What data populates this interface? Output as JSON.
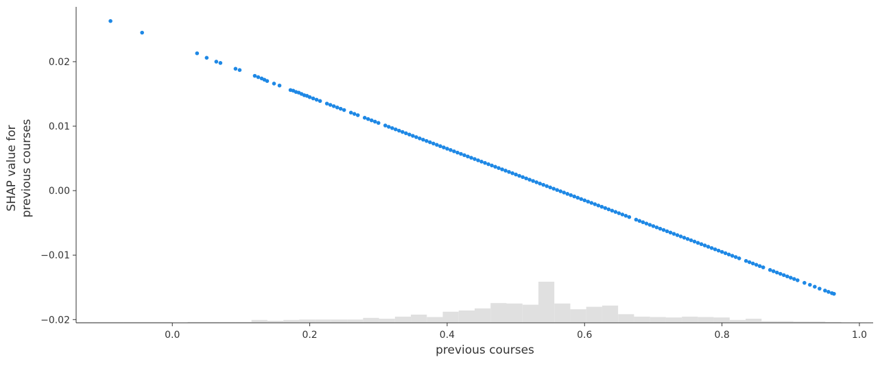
{
  "chart_data": {
    "type": "scatter",
    "xlabel": "previous courses",
    "ylabel_lines": [
      "SHAP value for",
      "previous courses"
    ],
    "xlim": [
      -0.14,
      1.02
    ],
    "ylim": [
      -0.0205,
      0.0285
    ],
    "x_ticks": [
      0.0,
      0.2,
      0.4,
      0.6,
      0.8,
      1.0
    ],
    "x_tick_labels": [
      "0.0",
      "0.2",
      "0.4",
      "0.6",
      "0.8",
      "1.0"
    ],
    "y_ticks": [
      -0.02,
      -0.01,
      0.0,
      0.01,
      0.02
    ],
    "y_tick_labels": [
      "−0.02",
      "−0.01",
      "0.00",
      "0.01",
      "0.02"
    ],
    "grid": false,
    "point_color": "#1e88e5",
    "histogram_color": "#e0e0e0",
    "relationship": {
      "slope": -0.04,
      "intercept": 0.0221
    },
    "points": {
      "x": [
        -0.09,
        -0.044,
        0.036,
        0.05,
        0.064,
        0.07,
        0.092,
        0.098,
        0.12,
        0.125,
        0.13,
        0.134,
        0.138,
        0.148,
        0.156,
        0.172,
        0.176,
        0.18,
        0.184,
        0.188,
        0.192,
        0.196,
        0.2,
        0.205,
        0.21,
        0.215,
        0.225,
        0.23,
        0.235,
        0.24,
        0.245,
        0.25,
        0.26,
        0.265,
        0.27,
        0.28,
        0.285,
        0.29,
        0.295,
        0.3,
        0.31,
        0.315,
        0.32,
        0.325,
        0.33,
        0.335,
        0.34,
        0.345,
        0.35,
        0.355,
        0.36,
        0.365,
        0.37,
        0.375,
        0.38,
        0.385,
        0.39,
        0.395,
        0.4,
        0.405,
        0.41,
        0.415,
        0.42,
        0.425,
        0.43,
        0.435,
        0.44,
        0.445,
        0.45,
        0.455,
        0.46,
        0.465,
        0.47,
        0.475,
        0.48,
        0.485,
        0.49,
        0.495,
        0.5,
        0.505,
        0.51,
        0.515,
        0.52,
        0.525,
        0.53,
        0.535,
        0.54,
        0.545,
        0.55,
        0.555,
        0.56,
        0.565,
        0.57,
        0.575,
        0.58,
        0.585,
        0.59,
        0.595,
        0.6,
        0.605,
        0.61,
        0.615,
        0.62,
        0.625,
        0.63,
        0.635,
        0.64,
        0.645,
        0.65,
        0.655,
        0.66,
        0.665,
        0.675,
        0.68,
        0.685,
        0.69,
        0.695,
        0.7,
        0.705,
        0.71,
        0.715,
        0.72,
        0.725,
        0.73,
        0.735,
        0.74,
        0.745,
        0.75,
        0.755,
        0.76,
        0.765,
        0.77,
        0.775,
        0.78,
        0.785,
        0.79,
        0.795,
        0.8,
        0.805,
        0.81,
        0.815,
        0.82,
        0.825,
        0.835,
        0.84,
        0.845,
        0.85,
        0.855,
        0.86,
        0.87,
        0.875,
        0.88,
        0.885,
        0.89,
        0.895,
        0.9,
        0.905,
        0.91,
        0.92,
        0.928,
        0.935,
        0.942,
        0.95,
        0.955,
        0.96,
        0.963
      ],
      "y": [
        0.0263,
        0.0245,
        0.0213,
        0.0206,
        0.02,
        0.0198,
        0.0189,
        0.0187,
        0.0178,
        0.0176,
        0.0174,
        0.0172,
        0.017,
        0.0166,
        0.0163,
        0.0156,
        0.0155,
        0.0153,
        0.0152,
        0.015,
        0.0148,
        0.0147,
        0.0145,
        0.0143,
        0.0141,
        0.0139,
        0.0135,
        0.0133,
        0.0131,
        0.0129,
        0.0127,
        0.0125,
        0.0121,
        0.0119,
        0.0117,
        0.0113,
        0.0111,
        0.0109,
        0.0107,
        0.0105,
        0.0101,
        0.0099,
        0.0097,
        0.0095,
        0.0093,
        0.0091,
        0.0089,
        0.0087,
        0.0085,
        0.0083,
        0.0081,
        0.0079,
        0.0077,
        0.0075,
        0.0073,
        0.0071,
        0.0069,
        0.0067,
        0.0065,
        0.0063,
        0.0061,
        0.0059,
        0.0057,
        0.0055,
        0.0053,
        0.0051,
        0.0049,
        0.0047,
        0.0045,
        0.0043,
        0.0041,
        0.0039,
        0.0037,
        0.0035,
        0.0033,
        0.0031,
        0.0029,
        0.0027,
        0.0025,
        0.0023,
        0.0021,
        0.0019,
        0.0017,
        0.0015,
        0.0013,
        0.0011,
        0.0009,
        0.0007,
        0.0005,
        0.0003,
        0.0001,
        -0.0001,
        -0.0003,
        -0.0005,
        -0.0007,
        -0.0009,
        -0.0011,
        -0.0013,
        -0.0015,
        -0.0017,
        -0.0019,
        -0.0021,
        -0.0023,
        -0.0025,
        -0.0027,
        -0.0029,
        -0.0031,
        -0.0033,
        -0.0035,
        -0.0037,
        -0.0039,
        -0.0041,
        -0.0045,
        -0.0047,
        -0.0049,
        -0.0051,
        -0.0053,
        -0.0055,
        -0.0057,
        -0.0059,
        -0.0061,
        -0.0063,
        -0.0065,
        -0.0067,
        -0.0069,
        -0.0071,
        -0.0073,
        -0.0075,
        -0.0077,
        -0.0079,
        -0.0081,
        -0.0083,
        -0.0085,
        -0.0087,
        -0.0089,
        -0.0091,
        -0.0093,
        -0.0095,
        -0.0097,
        -0.0099,
        -0.0101,
        -0.0103,
        -0.0105,
        -0.0109,
        -0.0111,
        -0.0113,
        -0.0115,
        -0.0117,
        -0.0119,
        -0.0123,
        -0.0125,
        -0.0127,
        -0.0129,
        -0.0131,
        -0.0133,
        -0.0135,
        -0.0137,
        -0.0139,
        -0.0143,
        -0.0146,
        -0.0149,
        -0.0152,
        -0.0155,
        -0.0157,
        -0.0159,
        -0.016
      ]
    },
    "histogram": {
      "bin_width": 0.0232,
      "bin_starts": [
        -0.14,
        -0.1168,
        -0.0936,
        -0.0704,
        -0.0472,
        -0.024,
        -0.0008,
        0.0224,
        0.0456,
        0.0688,
        0.092,
        0.1152,
        0.1384,
        0.1616,
        0.1848,
        0.208,
        0.2312,
        0.2544,
        0.2776,
        0.3008,
        0.324,
        0.3472,
        0.3704,
        0.3936,
        0.4168,
        0.44,
        0.4632,
        0.4864,
        0.5096,
        0.5328,
        0.556,
        0.5792,
        0.6024,
        0.6256,
        0.6488,
        0.672,
        0.6952,
        0.7184,
        0.7416,
        0.7648,
        0.788,
        0.8112,
        0.8344,
        0.8576,
        0.8808,
        0.904,
        0.9272,
        0.9504
      ],
      "relative_heights": [
        0.02,
        0.02,
        0.02,
        0.02,
        0.02,
        0.02,
        0.0,
        0.02,
        0.02,
        0.02,
        0.02,
        0.07,
        0.05,
        0.07,
        0.08,
        0.08,
        0.08,
        0.08,
        0.12,
        0.1,
        0.15,
        0.2,
        0.14,
        0.27,
        0.3,
        0.35,
        0.48,
        0.47,
        0.44,
        1.0,
        0.47,
        0.33,
        0.39,
        0.42,
        0.21,
        0.15,
        0.14,
        0.13,
        0.15,
        0.14,
        0.13,
        0.07,
        0.1,
        0.04,
        0.04,
        0.03,
        0.03,
        0.02
      ]
    }
  }
}
